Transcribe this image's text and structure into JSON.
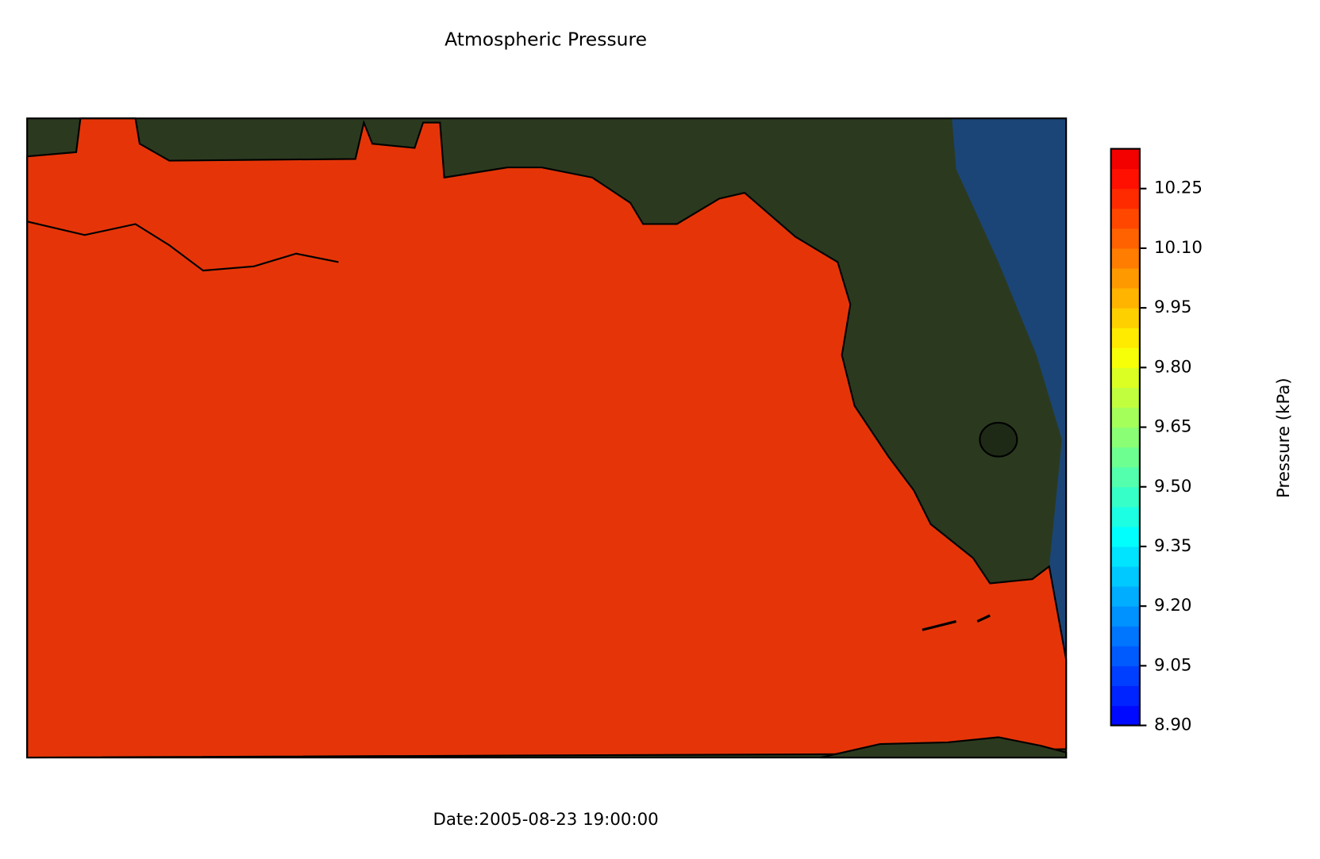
{
  "title": "Atmospheric Pressure",
  "date_label": "Date:2005-08-23 19:00:00",
  "colorbar": {
    "label": "Pressure (kPa)",
    "clim": [
      8.9,
      10.35
    ],
    "colormap": "jet",
    "ticks": [
      {
        "value": 8.9,
        "label": "8.90"
      },
      9.05,
      {
        "value": 9.2,
        "label": "9.20"
      },
      9.35,
      {
        "value": 9.5,
        "label": "9.50"
      },
      9.65,
      {
        "value": 9.8,
        "label": "9.80"
      },
      9.95,
      {
        "value": 10.1,
        "label": "10.10"
      },
      10.25
    ]
  }
}
